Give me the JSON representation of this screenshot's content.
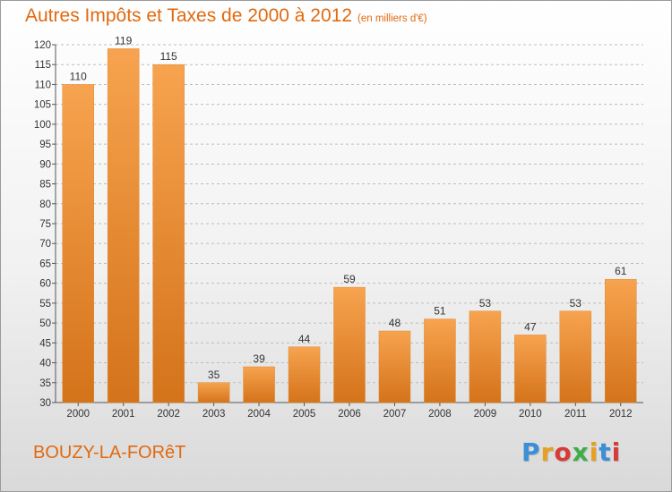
{
  "header": {
    "title": "Autres Impôts et Taxes de 2000 à 2012",
    "unit": "(en milliers d'€)"
  },
  "footer": {
    "place": "BOUZY-LA-FORêT",
    "logo_letters": [
      "P",
      "r",
      "o",
      "x",
      "i",
      "t",
      "i"
    ],
    "logo_colors": [
      "#3a8fd6",
      "#e8a020",
      "#d83a3a",
      "#3fae49",
      "#e8a020",
      "#3a8fd6",
      "#d83a3a"
    ]
  },
  "colors": {
    "bar_top": "#f7a34f",
    "bar_bottom": "#d4731a",
    "text_orange": "#e06a10",
    "grid": "#bdbdbd"
  },
  "chart_data": {
    "type": "bar",
    "title": "Autres Impôts et Taxes de 2000 à 2012",
    "xlabel": "",
    "ylabel": "",
    "ylim": [
      30,
      120
    ],
    "yticks": [
      30,
      35,
      40,
      45,
      50,
      55,
      60,
      65,
      70,
      75,
      80,
      85,
      90,
      95,
      100,
      105,
      110,
      115,
      120
    ],
    "categories": [
      "2000",
      "2001",
      "2002",
      "2003",
      "2004",
      "2005",
      "2006",
      "2007",
      "2008",
      "2009",
      "2010",
      "2011",
      "2012"
    ],
    "values": [
      110,
      119,
      115,
      35,
      39,
      44,
      59,
      48,
      51,
      53,
      47,
      53,
      61
    ],
    "grid": true,
    "legend": "none"
  }
}
